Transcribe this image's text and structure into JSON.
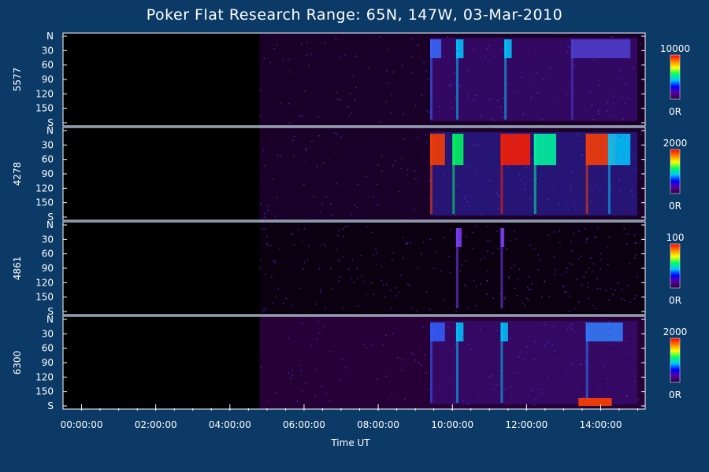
{
  "chart_data": {
    "type": "heatmap",
    "title": "Poker Flat Research Range: 65N, 147W, 03-Mar-2010",
    "xlabel": "Time UT",
    "x_ticks": [
      "00:00:00",
      "02:00:00",
      "04:00:00",
      "06:00:00",
      "08:00:00",
      "10:00:00",
      "12:00:00",
      "14:00:00"
    ],
    "x_range_hours": [
      -0.5,
      15.2
    ],
    "y_ticks": [
      "N",
      "30",
      "60",
      "90",
      "120",
      "150",
      "S"
    ],
    "y_range_deg": [
      0,
      180
    ],
    "data_start_hour": 4.8,
    "panels": [
      {
        "wavelength": "5577",
        "colorbar_max": "10000",
        "colorbar_min": "0R",
        "intensity": "high"
      },
      {
        "wavelength": "4278",
        "colorbar_max": "2000",
        "colorbar_min": "0R",
        "intensity": "very-high"
      },
      {
        "wavelength": "4861",
        "colorbar_max": "100",
        "colorbar_min": "0R",
        "intensity": "sparse"
      },
      {
        "wavelength": "6300",
        "colorbar_max": "2000",
        "colorbar_min": "0R",
        "intensity": "medium"
      }
    ],
    "colorscale": [
      "#2a003a",
      "#5a00a0",
      "#0000ff",
      "#00c8ff",
      "#00ff60",
      "#ffff00",
      "#ff8000",
      "#ff0000"
    ]
  }
}
